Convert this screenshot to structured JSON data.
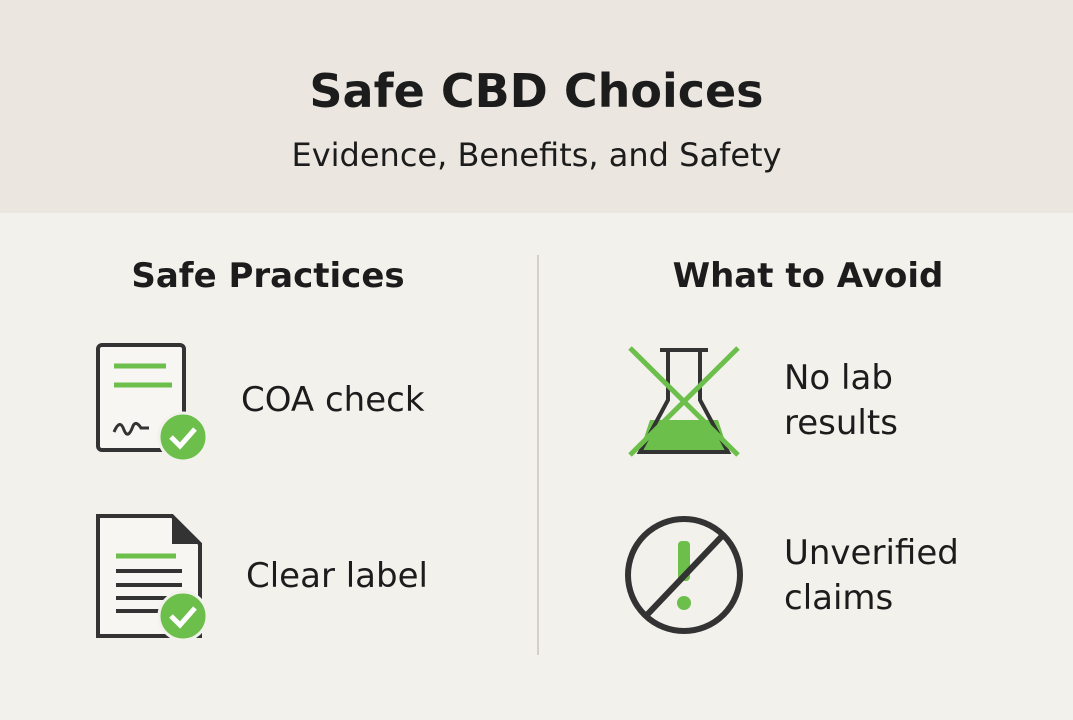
{
  "header": {
    "title": "Safe CBD Choices",
    "subtitle": "Evidence, Benefits, and Safety"
  },
  "columns": [
    {
      "heading": "Safe Practices",
      "items": [
        {
          "label": "COA check"
        },
        {
          "label": "Clear label"
        }
      ]
    },
    {
      "heading": "What to Avoid",
      "items": [
        {
          "label": "No lab results"
        },
        {
          "label": "Unverified claims"
        }
      ]
    }
  ]
}
